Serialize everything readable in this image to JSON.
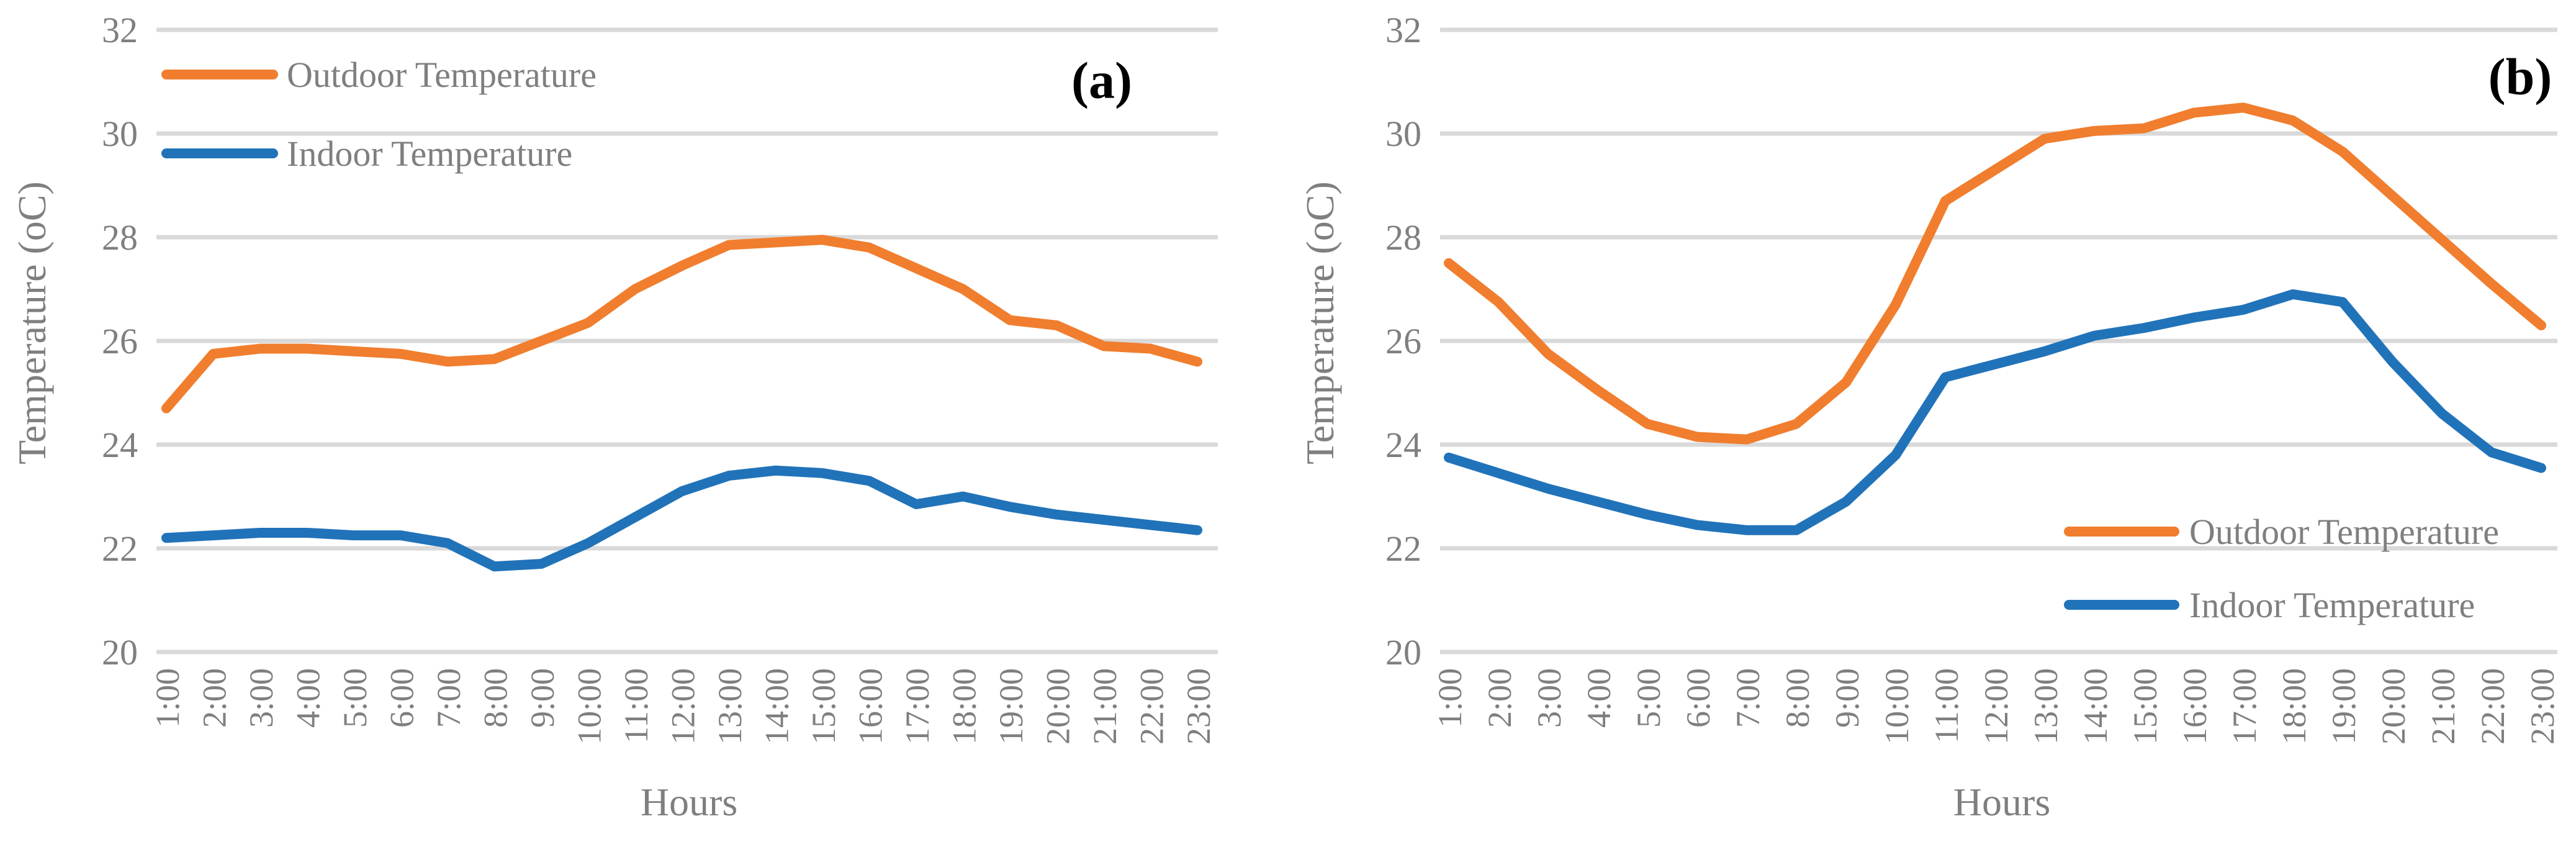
{
  "chart_data": [
    {
      "type": "line",
      "panel_label": "(a)",
      "title": "",
      "xlabel": "Hours",
      "ylabel": "Temperature (oC)",
      "ylim": [
        20,
        32
      ],
      "yticks": [
        20,
        22,
        24,
        26,
        28,
        30,
        32
      ],
      "grid": true,
      "grid_color": "#d9d9d9",
      "tick_text_color": "#7f7f7f",
      "legend_position": "top-left",
      "categories": [
        "1:00",
        "2:00",
        "3:00",
        "4:00",
        "5:00",
        "6:00",
        "7:00",
        "8:00",
        "9:00",
        "10:00",
        "11:00",
        "12:00",
        "13:00",
        "14:00",
        "15:00",
        "16:00",
        "17:00",
        "18:00",
        "19:00",
        "20:00",
        "21:00",
        "22:00",
        "23:00"
      ],
      "series": [
        {
          "name": "Outdoor Temperature",
          "color": "#F07E2E",
          "values": [
            24.7,
            25.75,
            25.85,
            25.85,
            25.8,
            25.75,
            25.6,
            25.65,
            26.0,
            26.35,
            27.0,
            27.45,
            27.85,
            27.9,
            27.95,
            27.8,
            27.4,
            27.0,
            26.4,
            26.3,
            25.9,
            25.85,
            25.6
          ]
        },
        {
          "name": "Indoor Temperature",
          "color": "#2173B9",
          "values": [
            22.2,
            22.25,
            22.3,
            22.3,
            22.25,
            22.25,
            22.1,
            21.65,
            21.7,
            22.1,
            22.6,
            23.1,
            23.4,
            23.5,
            23.45,
            23.3,
            22.85,
            23.0,
            22.8,
            22.65,
            22.55,
            22.45,
            22.35
          ]
        }
      ]
    },
    {
      "type": "line",
      "panel_label": "(b)",
      "title": "",
      "xlabel": "Hours",
      "ylabel": "Temperature (oC)",
      "ylim": [
        20,
        32
      ],
      "yticks": [
        20,
        22,
        24,
        26,
        28,
        30,
        32
      ],
      "grid": true,
      "grid_color": "#d9d9d9",
      "tick_text_color": "#7f7f7f",
      "legend_position": "middle-right",
      "categories": [
        "1:00",
        "2:00",
        "3:00",
        "4:00",
        "5:00",
        "6:00",
        "7:00",
        "8:00",
        "9:00",
        "10:00",
        "11:00",
        "12:00",
        "13:00",
        "14:00",
        "15:00",
        "16:00",
        "17:00",
        "18:00",
        "19:00",
        "20:00",
        "21:00",
        "22:00",
        "23:00"
      ],
      "series": [
        {
          "name": "Outdoor Temperature",
          "color": "#F07E2E",
          "values": [
            27.5,
            26.75,
            25.75,
            25.05,
            24.4,
            24.15,
            24.1,
            24.4,
            25.2,
            26.7,
            28.7,
            29.3,
            29.9,
            30.05,
            30.1,
            30.4,
            30.5,
            30.25,
            29.65,
            28.8,
            27.95,
            27.1,
            26.3
          ]
        },
        {
          "name": "Indoor Temperature",
          "color": "#2173B9",
          "values": [
            23.75,
            23.45,
            23.15,
            22.9,
            22.65,
            22.45,
            22.35,
            22.35,
            22.9,
            23.8,
            25.3,
            25.55,
            25.8,
            26.1,
            26.25,
            26.45,
            26.6,
            26.9,
            26.75,
            25.6,
            24.6,
            23.85,
            23.55
          ]
        }
      ]
    }
  ]
}
